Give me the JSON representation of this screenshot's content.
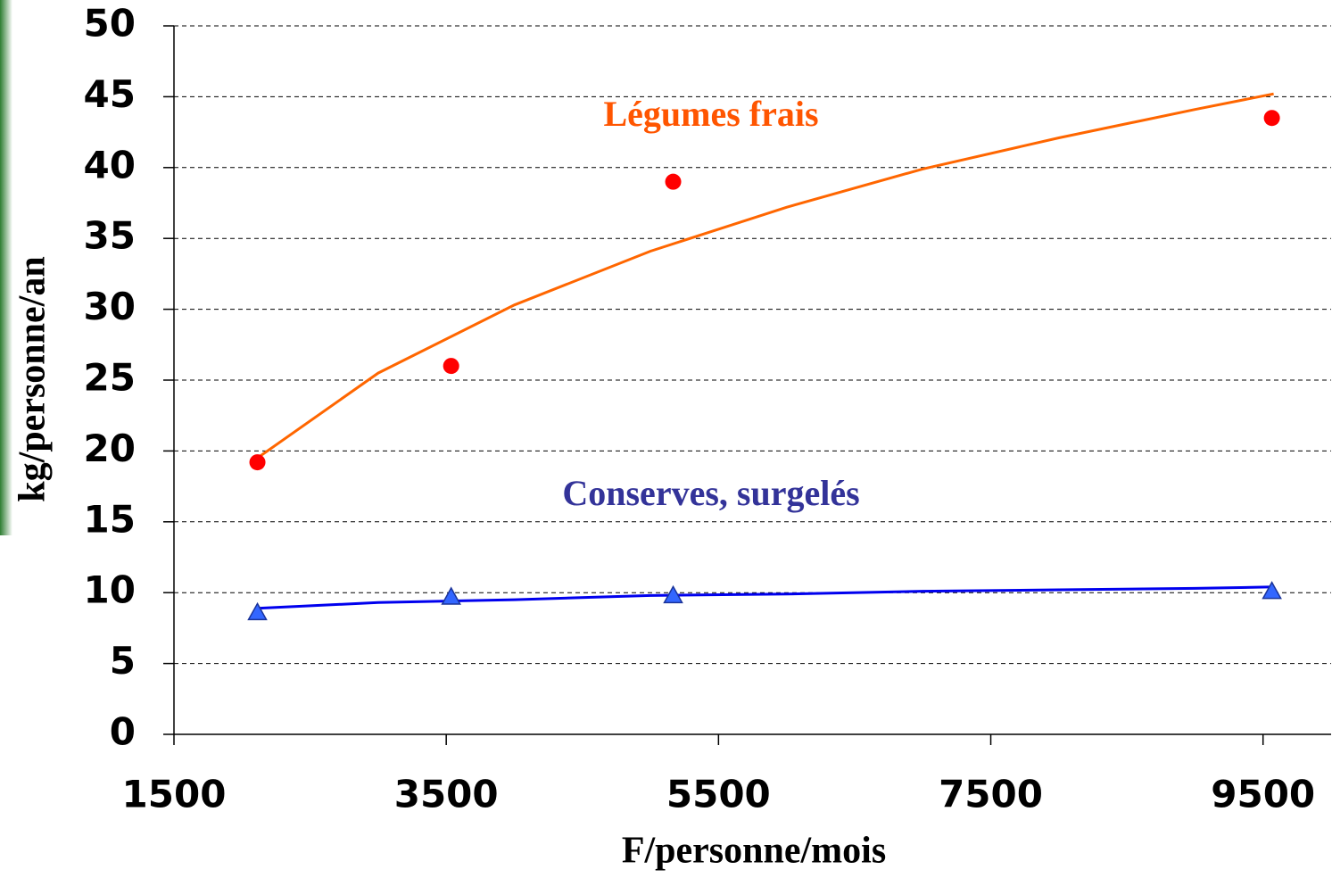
{
  "chart_data": {
    "type": "scatter",
    "x_label": "F/personne/mois",
    "y_label": "kg/personne/an",
    "xlim": [
      1500,
      10000
    ],
    "xticks": [
      1500,
      3500,
      5500,
      7500,
      9500
    ],
    "ylim": [
      0,
      50
    ],
    "yticks": [
      0,
      5,
      10,
      15,
      20,
      25,
      30,
      35,
      40,
      45,
      50
    ],
    "grid": true,
    "series": [
      {
        "name": "Légumes frais",
        "color": "#ff0000",
        "label_color": "#ff5500",
        "marker": "circle",
        "x": [
          2113,
          3536,
          5167,
          9565
        ],
        "values": [
          19.2,
          26,
          39,
          43.5
        ],
        "trend": {
          "color": "#ff6600",
          "x": [
            2113,
            3000,
            4000,
            5000,
            6000,
            7000,
            8000,
            9000,
            9578
          ],
          "values": [
            19.5,
            25.5,
            30.3,
            34.1,
            37.2,
            39.9,
            42.1,
            44.1,
            45.2
          ]
        }
      },
      {
        "name": "Conserves, surgelés",
        "color": "#3366ff",
        "label_color": "#333399",
        "marker": "triangle",
        "x": [
          2113,
          3536,
          5167,
          9565
        ],
        "values": [
          8.6,
          9.7,
          9.8,
          10.1
        ],
        "trend": {
          "color": "#0000ee",
          "x": [
            2113,
            3000,
            4000,
            5000,
            6000,
            7000,
            8000,
            9000,
            9578
          ],
          "values": [
            8.9,
            9.3,
            9.5,
            9.8,
            9.9,
            10.1,
            10.2,
            10.3,
            10.4
          ]
        }
      }
    ]
  }
}
